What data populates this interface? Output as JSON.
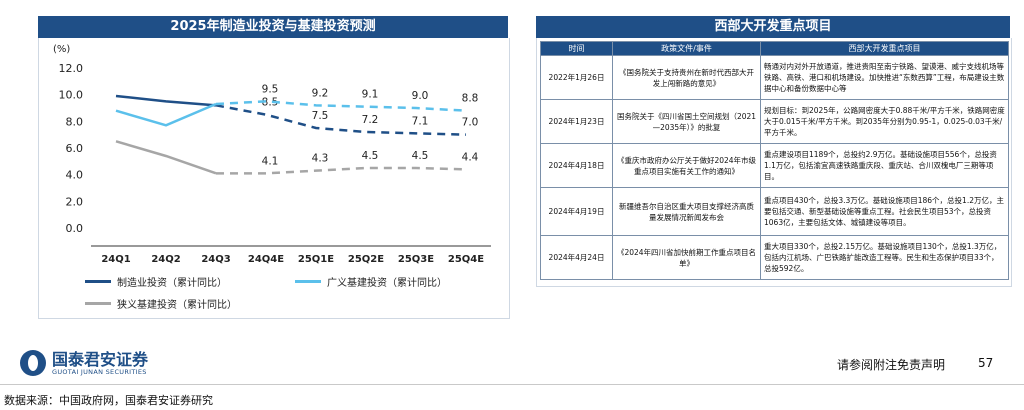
{
  "chart_panel": {
    "title": "2025年制造业投资与基建投资预测",
    "legend": [
      {
        "label": "制造业投资（累计同比）",
        "color": "#1f4f87",
        "dashed": false
      },
      {
        "label": "广义基建投资（累计同比）",
        "color": "#5bc0eb",
        "dashed": false
      },
      {
        "label": "狭义基建投资（累计同比）",
        "color": "#a6a6a6",
        "dashed": false
      }
    ]
  },
  "chart_data": {
    "type": "line",
    "ylabel": "(%)",
    "ylim": [
      0,
      12
    ],
    "yticks": [
      "0.0",
      "2.0",
      "4.0",
      "6.0",
      "8.0",
      "10.0",
      "12.0"
    ],
    "categories": [
      "24Q1",
      "24Q2",
      "24Q3",
      "24Q4E",
      "25Q1E",
      "25Q2E",
      "25Q3E",
      "25Q4E"
    ],
    "series": [
      {
        "name": "制造业投资（累计同比）",
        "color": "#1f4f87",
        "values": [
          9.9,
          9.5,
          9.2,
          8.5,
          7.5,
          7.2,
          7.1,
          7.0
        ],
        "actual_until": 2,
        "labels": [
          "",
          "",
          "",
          "8.5",
          "7.5",
          "7.2",
          "7.1",
          "7.0"
        ]
      },
      {
        "name": "广义基建投资（累计同比）",
        "color": "#5bc0eb",
        "values": [
          8.8,
          7.7,
          9.3,
          9.5,
          9.2,
          9.1,
          9.0,
          8.8
        ],
        "actual_until": 2,
        "labels": [
          "",
          "",
          "",
          "9.5",
          "9.2",
          "9.1",
          "9.0",
          "8.8"
        ]
      },
      {
        "name": "狭义基建投资（累计同比）",
        "color": "#a6a6a6",
        "values": [
          6.5,
          5.4,
          4.1,
          4.1,
          4.3,
          4.5,
          4.5,
          4.4
        ],
        "actual_until": 2,
        "labels": [
          "",
          "",
          "",
          "4.1",
          "4.3",
          "4.5",
          "4.5",
          "4.4"
        ]
      }
    ]
  },
  "table_panel": {
    "title": "西部大开发重点项目",
    "headers": [
      "时间",
      "政策文件/事件",
      "西部大开发重点项目"
    ],
    "rows": [
      {
        "date": "2022年1月26日",
        "policy": "《国务院关于支持贵州在新时代西部大开发上闯新路的意见》",
        "projects": "畅通对内对外开放通道，推进贵阳至南宁铁路、望谟港、威宁支线机场等铁路、高铁、港口和机场建设。加快推进“东数西算”工程，布局建设主数据中心和备份数据中心等"
      },
      {
        "date": "2024年1月23日",
        "policy": "国务院关于《四川省国土空间规划（2021—2035年）》的批复",
        "projects": "规划目标：到2025年，公路网密度大于0.88千米/平方千米，铁路网密度大于0.015千米/平方千米。到2035年分别为0.95-1，0.025-0.03千米/平方千米。"
      },
      {
        "date": "2024年4月18日",
        "policy": "《重庆市政府办公厅关于做好2024年市级重点项目实施有关工作的通知》",
        "projects": "重点建设项目1189个，总投约2.9万亿。基础设施项目556个，总投资1.1万亿，包括渝宜高速铁路重庆段、重庆站、合川双槐电厂三期等项目。"
      },
      {
        "date": "2024年4月19日",
        "policy": "新疆维吾尔自治区重大项目支撑经济高质量发展情况新闻发布会",
        "projects": "重点项目430个，总投3.3万亿。基础设施项目186个，总投1.2万亿，主要包括交通、新型基础设施等重点工程。社会民生项目53个，总投资1063亿，主要包括文体、城镇建设等项目。"
      },
      {
        "date": "2024年4月24日",
        "policy": "《2024年四川省加快前期工作重点项目名单》",
        "projects": "重大项目330个，总投2.15万亿。基础设施项目130个，总投1.3万亿，包括内江机场、广巴铁路扩能改造工程等。民生和生态保护项目33个，总投592亿。"
      }
    ]
  },
  "footer": {
    "logo_name": "国泰君安证券",
    "logo_sub": "GUOTAI JUNAN SECURITIES",
    "disclaimer": "请参阅附注免责声明",
    "page_number": "57",
    "source": "数据来源：中国政府网，国泰君安证券研究"
  }
}
